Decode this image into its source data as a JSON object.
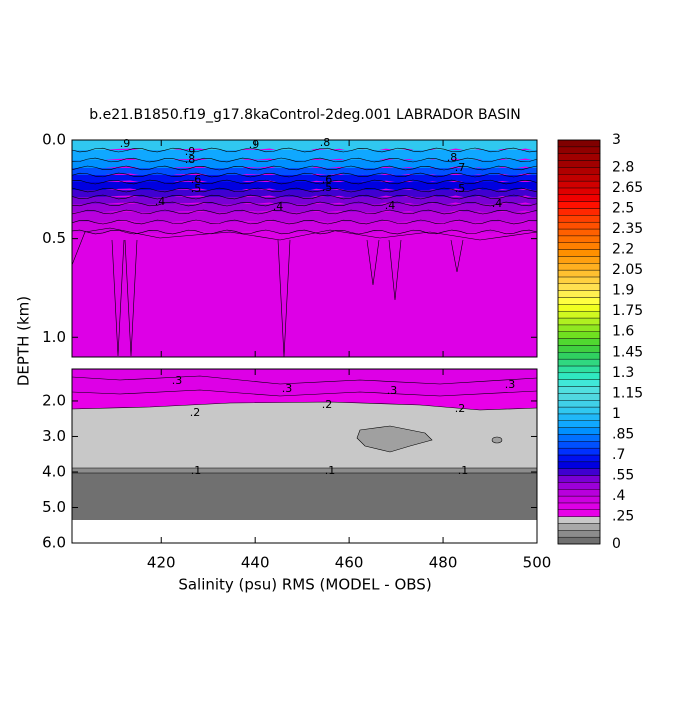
{
  "chart_data": {
    "type": "contour",
    "title": "b.e21.B1850.f19_g17.8kaControl-2deg.001 LABRADOR BASIN",
    "x_label": "Salinity (psu) RMS (MODEL - OBS)",
    "y_label": "DEPTH (km)",
    "xlim": [
      401,
      500
    ],
    "xticks": [
      420,
      440,
      460,
      480,
      500
    ],
    "y_reversed": true,
    "panels": [
      {
        "ylim": [
          0,
          1.1
        ],
        "yticks": [
          {
            "value": 0,
            "label": "0.0"
          },
          {
            "value": 0.5,
            "label": "0.5"
          },
          {
            "value": 1,
            "label": "1.0"
          }
        ]
      },
      {
        "ylim": [
          1.1,
          6
        ],
        "yticks": [
          {
            "value": 2,
            "label": "2.0"
          },
          {
            "value": 3,
            "label": "3.0"
          },
          {
            "value": 4,
            "label": "4.0"
          },
          {
            "value": 5,
            "label": "5.0"
          },
          {
            "value": 6,
            "label": "6.0"
          }
        ]
      }
    ],
    "colorbar": {
      "levels": [
        0,
        0.1,
        0.15,
        0.2,
        0.25,
        0.3,
        0.35,
        0.4,
        0.45,
        0.5,
        0.55,
        0.6,
        0.65,
        0.7,
        0.75,
        0.8,
        0.85,
        0.9,
        0.95,
        1,
        1.05,
        1.1,
        1.15,
        1.2,
        1.25,
        1.3,
        1.35,
        1.4,
        1.45,
        1.5,
        1.55,
        1.6,
        1.65,
        1.7,
        1.75,
        1.8,
        1.85,
        1.9,
        1.95,
        2,
        2.05,
        2.1,
        2.15,
        2.2,
        2.25,
        2.3,
        2.35,
        2.4,
        2.45,
        2.5,
        2.55,
        2.6,
        2.65,
        2.7,
        2.75,
        2.8,
        2.85,
        2.9,
        2.95,
        3
      ],
      "colors": [
        "#707070",
        "#8c8c8c",
        "#a8a8a8",
        "#c8c8c8",
        "#e800e8",
        "#dd00e6",
        "#cc00e0",
        "#b800dc",
        "#9c00d8",
        "#7a00d4",
        "#4000d0",
        "#0000e0",
        "#0010f0",
        "#0030ff",
        "#0050ff",
        "#0070ff",
        "#0090ff",
        "#10a8ff",
        "#20b8f8",
        "#30c8f0",
        "#40d0e8",
        "#50d8e0",
        "#50e0e0",
        "#40e8d8",
        "#30e8c0",
        "#30e0a0",
        "#30d880",
        "#30d060",
        "#40d040",
        "#50d830",
        "#70e020",
        "#90e820",
        "#b0f020",
        "#d0f820",
        "#f0ff20",
        "#ffff40",
        "#fff050",
        "#ffe050",
        "#ffd040",
        "#ffc030",
        "#ffb020",
        "#ffa010",
        "#ff9000",
        "#ff8000",
        "#ff7000",
        "#ff6000",
        "#ff5000",
        "#ff4000",
        "#ff2800",
        "#ff1000",
        "#f00000",
        "#e00000",
        "#d00000",
        "#c00000",
        "#b00000",
        "#a00000",
        "#a00000",
        "#900000",
        "#800000"
      ],
      "ticks": [
        3,
        2.8,
        2.65,
        2.5,
        2.35,
        2.2,
        2.05,
        1.9,
        1.75,
        1.6,
        1.45,
        1.3,
        1.15,
        1,
        {
          "value": 0.85,
          "label": ".85"
        },
        {
          "value": 0.7,
          "label": ".7"
        },
        {
          "value": 0.55,
          "label": ".55"
        },
        {
          "value": 0.4,
          "label": ".4"
        },
        {
          "value": 0.25,
          "label": ".25"
        },
        0
      ]
    },
    "contour_labels": [
      {
        "value": 0.9,
        "label": ".9"
      },
      {
        "value": 0.9,
        "label": ".9"
      },
      {
        "value": 0.8,
        "label": ".8"
      },
      {
        "value": 0.9,
        "label": ".9"
      },
      {
        "value": 0.8,
        "label": ".8"
      },
      {
        "value": 0.8,
        "label": ".8"
      },
      {
        "value": 0.7,
        "label": ".7"
      },
      {
        "value": 0.6,
        "label": ".6"
      },
      {
        "value": 0.5,
        "label": ".5"
      },
      {
        "value": 0.6,
        "label": ".6"
      },
      {
        "value": 0.5,
        "label": ".5"
      },
      {
        "value": 0.5,
        "label": ".5"
      },
      {
        "value": 0.4,
        "label": ".4"
      },
      {
        "value": 0.4,
        "label": ".4"
      },
      {
        "value": 0.4,
        "label": ".4"
      },
      {
        "value": 0.4,
        "label": ".4"
      },
      {
        "value": 0.3,
        "label": ".3"
      },
      {
        "value": 0.3,
        "label": ".3"
      },
      {
        "value": 0.3,
        "label": ".3"
      },
      {
        "value": 0.3,
        "label": ".3"
      },
      {
        "value": 0.2,
        "label": ".2"
      },
      {
        "value": 0.2,
        "label": ".2"
      },
      {
        "value": 0.2,
        "label": ".2"
      },
      {
        "value": 0.1,
        "label": ".1"
      },
      {
        "value": 0.1,
        "label": ".1"
      },
      {
        "value": 0.1,
        "label": ".1"
      }
    ]
  }
}
